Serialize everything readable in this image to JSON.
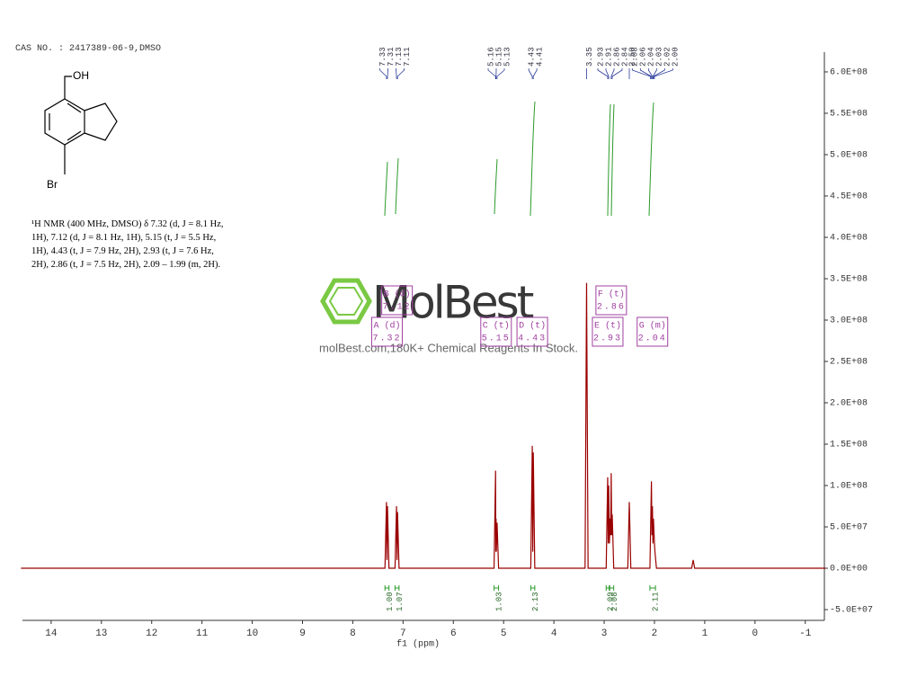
{
  "chart_data": {
    "type": "nmr",
    "title": "CAS NO. : 2417389-06-9,DMSO",
    "description": "¹H NMR (400 MHz, DMSO) δ 7.32 (d, J = 8.1 Hz, 1H), 7.12 (d, J = 8.1 Hz, 1H), 5.15 (t, J = 5.5 Hz, 1H), 4.43 (t, J = 7.9 Hz, 2H), 2.93 (t, J = 7.6 Hz, 2H), 2.86 (t, J = 7.5 Hz, 2H), 2.09 – 1.99 (m, 2H).",
    "structure_labels": [
      "OH",
      "Br"
    ],
    "xlabel": "f1 (ppm)",
    "color": "#9a0000",
    "x": [
      14.6,
      7.36,
      7.33,
      7.32,
      7.31,
      7.28,
      7.16,
      7.13,
      7.12,
      7.11,
      7.08,
      5.19,
      5.16,
      5.155,
      5.15,
      5.145,
      5.13,
      5.1,
      4.46,
      4.43,
      4.42,
      4.41,
      4.38,
      3.38,
      3.35,
      3.32,
      2.96,
      2.93,
      2.92,
      2.91,
      2.895,
      2.88,
      2.87,
      2.86,
      2.85,
      2.84,
      2.81,
      2.53,
      2.5,
      2.47,
      2.09,
      2.06,
      2.05,
      2.04,
      2.03,
      2.02,
      2.0,
      1.99,
      1.96,
      1.26,
      1.23,
      1.2,
      -1.4
    ],
    "values": [
      0,
      0,
      80000000,
      10000000,
      75000000,
      0,
      0,
      75000000,
      10000000,
      68000000,
      0,
      0,
      118000000,
      20000000,
      60000000,
      20000000,
      55000000,
      0,
      0,
      148000000,
      20000000,
      140000000,
      0,
      0,
      345000000,
      0,
      0,
      110000000,
      30000000,
      100000000,
      30000000,
      60000000,
      40000000,
      115000000,
      40000000,
      65000000,
      0,
      0,
      80000000,
      0,
      0,
      105000000,
      40000000,
      75000000,
      30000000,
      60000000,
      30000000,
      20000000,
      0,
      0,
      10000000,
      0,
      0
    ],
    "xlim": [
      14.57,
      -1.38
    ],
    "ylim": [
      -63000000,
      621700000
    ],
    "xticks": [
      14,
      13,
      12,
      11,
      10,
      9,
      8,
      7,
      6,
      5,
      4,
      3,
      2,
      1,
      0,
      -1
    ],
    "yticks": [
      {
        "value": 600000000,
        "label": "6.0E+08"
      },
      {
        "value": 550000000,
        "label": "5.5E+08"
      },
      {
        "value": 500000000,
        "label": "5.0E+08"
      },
      {
        "value": 450000000,
        "label": "4.5E+08"
      },
      {
        "value": 400000000,
        "label": "4.0E+08"
      },
      {
        "value": 350000000,
        "label": "3.5E+08"
      },
      {
        "value": 300000000,
        "label": "3.0E+08"
      },
      {
        "value": 250000000,
        "label": "2.5E+08"
      },
      {
        "value": 200000000,
        "label": "2.0E+08"
      },
      {
        "value": 150000000,
        "label": "1.5E+08"
      },
      {
        "value": 100000000,
        "label": "1.0E+08"
      },
      {
        "value": 50000000,
        "label": "5.0E+07"
      },
      {
        "value": 0,
        "label": "0.0E+00"
      },
      {
        "value": -50000000,
        "label": "-5.0E+07"
      }
    ],
    "peak_labels": [
      7.33,
      7.31,
      7.13,
      7.11,
      5.16,
      5.15,
      5.13,
      4.43,
      4.41,
      3.35,
      2.93,
      2.91,
      2.86,
      2.84,
      {
        "value": 2.5,
        "label": "2.50"
      },
      2.08,
      2.06,
      2.04,
      2.03,
      2.02,
      {
        "value": 2.0,
        "label": "2.00"
      }
    ],
    "multiplets": [
      {
        "name": "A (d)",
        "shift": 7.32
      },
      {
        "name": "B (d)",
        "shift": 7.12
      },
      {
        "name": "C (t)",
        "shift": 5.15
      },
      {
        "name": "D (t)",
        "shift": 4.43
      },
      {
        "name": "E (t)",
        "shift": 2.93
      },
      {
        "name": "F (t)",
        "shift": 2.86
      },
      {
        "name": "G (m)",
        "shift": 2.04
      }
    ],
    "integrals": [
      {
        "from": 7.36,
        "to": 7.28,
        "label": "1.00"
      },
      {
        "from": 7.16,
        "to": 7.08,
        "label": "1.07"
      },
      {
        "from": 5.19,
        "to": 5.1,
        "label": "1.03"
      },
      {
        "from": 4.46,
        "to": 4.38,
        "label": "2.13"
      },
      {
        "from": 2.96,
        "to": 2.9,
        "label": "2.09"
      },
      {
        "from": 2.89,
        "to": 2.81,
        "label": "2.08"
      },
      {
        "from": 2.09,
        "to": 1.98,
        "label": "2.11"
      }
    ],
    "watermark": {
      "logo": "MolBest",
      "text": "molBest.com,180K+ Chemical Reagents In Stock."
    }
  }
}
